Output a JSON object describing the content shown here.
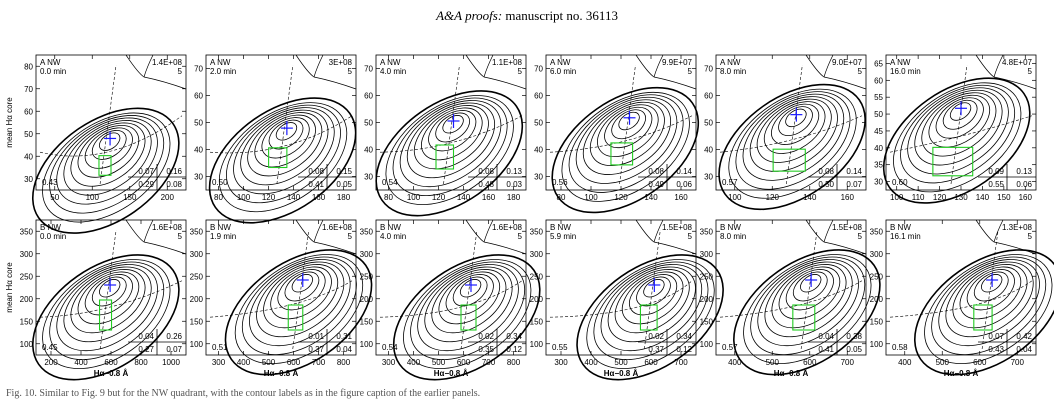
{
  "header": {
    "journal": "A&A proofs:",
    "rest": "manuscript no. 36113"
  },
  "y_axis_label": "mean Hα core",
  "x_axis_label": "Hα−0.8 Å",
  "caption": "Fig. 10. Similar to Fig. 9 but for the NW quadrant, with the contour labels as in the figure caption of the earlier panels.",
  "panel_rows": [
    {
      "row": "A",
      "xlim": [
        50,
        210
      ],
      "panels": [
        {
          "label": "A  NW",
          "time": "0.0 min",
          "count": "1.4E+08",
          "level": "5",
          "corner": "0.43",
          "table": [
            "0.07",
            "0.16",
            "0.29",
            "0.08"
          ],
          "xticks": [
            "50",
            "100",
            "150",
            "200"
          ],
          "yticks": [
            "30",
            "40",
            "50",
            "60",
            "70",
            "80"
          ],
          "ylim": [
            27,
            82
          ],
          "xrange": [
            50,
            212
          ],
          "cross": [
            130,
            48
          ],
          "box": [
            118,
            131,
            33,
            41
          ]
        },
        {
          "label": "A  NW",
          "time": "2.0 min",
          "count": "3E+08",
          "level": "5",
          "corner": "0.50",
          "table": [
            "0.08",
            "0.15",
            "0.41",
            "0.05"
          ],
          "xticks": [
            "80",
            "100",
            "120",
            "140",
            "160",
            "180"
          ],
          "yticks": [
            "30",
            "40",
            "50",
            "60",
            "70"
          ],
          "ylim": [
            27,
            75
          ],
          "xrange": [
            70,
            185
          ],
          "cross": [
            132,
            49
          ],
          "box": [
            118,
            132,
            35,
            42
          ]
        },
        {
          "label": "A  NW",
          "time": "4.0 min",
          "count": "1.1E+08",
          "level": "5",
          "corner": "0.54",
          "table": [
            "0.08",
            "0.13",
            "0.48",
            "0.03"
          ],
          "xticks": [
            "80",
            "100",
            "120",
            "140",
            "160",
            "180"
          ],
          "yticks": [
            "30",
            "40",
            "50",
            "60",
            "70"
          ],
          "ylim": [
            27,
            72
          ],
          "xrange": [
            70,
            190
          ],
          "cross": [
            132,
            50
          ],
          "box": [
            118,
            132,
            34,
            42
          ]
        },
        {
          "label": "A  NW",
          "time": "6.0 min",
          "count": "9.9E+07",
          "level": "5",
          "corner": "0.56",
          "table": [
            "0.08",
            "0.14",
            "0.49",
            "0.06"
          ],
          "xticks": [
            "80",
            "100",
            "120",
            "140",
            "160"
          ],
          "yticks": [
            "30",
            "40",
            "50",
            "60",
            "70"
          ],
          "ylim": [
            27,
            70
          ],
          "xrange": [
            78,
            175
          ],
          "cross": [
            132,
            50
          ],
          "box": [
            120,
            134,
            35,
            42
          ]
        },
        {
          "label": "A  NW",
          "time": "8.0 min",
          "count": "9.0E+07",
          "level": "5",
          "corner": "0.57",
          "table": [
            "0.08",
            "0.14",
            "0.50",
            "0.07"
          ],
          "xticks": [
            "100",
            "120",
            "140",
            "160"
          ],
          "yticks": [
            "30",
            "40",
            "50",
            "60",
            "70"
          ],
          "ylim": [
            27,
            70
          ],
          "xrange": [
            88,
            172
          ],
          "cross": [
            133,
            51
          ],
          "box": [
            120,
            138,
            33,
            40
          ]
        },
        {
          "label": "A  NW",
          "time": "16.0 min",
          "count": "4.8E+07",
          "level": "5",
          "corner": "0.60",
          "table": [
            "0.09",
            "0.13",
            "0.55",
            "0.06"
          ],
          "xticks": [
            "100",
            "110",
            "120",
            "130",
            "140",
            "150",
            "160"
          ],
          "yticks": [
            "30",
            "35",
            "40",
            "45",
            "50",
            "55",
            "60",
            "65"
          ],
          "ylim": [
            28,
            66
          ],
          "xrange": [
            100,
            164
          ],
          "cross": [
            132,
            51
          ],
          "box": [
            120,
            137,
            32,
            40
          ]
        }
      ]
    },
    {
      "row": "B",
      "panels": [
        {
          "label": "B  NW",
          "time": "0.0 min",
          "count": "1.6E+08",
          "level": "5",
          "corner": "0.45",
          "table": [
            "0.04",
            "0.26",
            "0.27",
            "0.07"
          ],
          "xticks": [
            "200",
            "400",
            "600",
            "800",
            "1000"
          ],
          "yticks": [
            "100",
            "150",
            "200",
            "250",
            "300",
            "350"
          ],
          "ylim": [
            90,
            360
          ],
          "xrange": [
            200,
            1050
          ],
          "cross": [
            620,
            230
          ],
          "box": [
            560,
            620,
            140,
            200
          ],
          "xlabel": true,
          "ylabel": true
        },
        {
          "label": "B  NW",
          "time": "1.9 min",
          "count": "1.6E+08",
          "level": "5",
          "corner": "0.51",
          "table": [
            "0.01",
            "0.31",
            "0.37",
            "0.04"
          ],
          "xticks": [
            "300",
            "400",
            "500",
            "600",
            "700",
            "800"
          ],
          "yticks": [
            "100",
            "150",
            "200",
            "250",
            "300",
            "350"
          ],
          "ylim": [
            90,
            360
          ],
          "xrange": [
            220,
            840
          ],
          "cross": [
            620,
            240
          ],
          "box": [
            560,
            620,
            140,
            190
          ],
          "xlabel": true
        },
        {
          "label": "B  NW",
          "time": "4.0 min",
          "count": "1.6E+08",
          "level": "5",
          "corner": "0.54",
          "table": [
            "0.02",
            "0.34",
            "0.35",
            "0.12"
          ],
          "xticks": [
            "300",
            "400",
            "500",
            "600",
            "700",
            "800"
          ],
          "yticks": [
            "100",
            "150",
            "200",
            "250",
            "300",
            "350"
          ],
          "ylim": [
            90,
            360
          ],
          "xrange": [
            220,
            820
          ],
          "cross": [
            600,
            230
          ],
          "box": [
            560,
            620,
            140,
            190
          ],
          "xlabel": true
        },
        {
          "label": "B  NW",
          "time": "5.9 min",
          "count": "1.5E+08",
          "level": "5",
          "corner": "0.55",
          "table": [
            "0.02",
            "0.34",
            "0.37",
            "0.12"
          ],
          "xticks": [
            "300",
            "400",
            "500",
            "600",
            "700"
          ],
          "yticks": [
            "100",
            "150",
            "200",
            "250",
            "300",
            "350"
          ],
          "ylim": [
            90,
            360
          ],
          "xrange": [
            220,
            760
          ],
          "cross": [
            610,
            230
          ],
          "box": [
            560,
            620,
            140,
            190
          ],
          "xlabel": true
        },
        {
          "label": "B  NW",
          "time": "8.0 min",
          "count": "1.5E+08",
          "level": "5",
          "corner": "0.57",
          "table": [
            "0.04",
            "0.38",
            "0.41",
            "0.05"
          ],
          "xticks": [
            "400",
            "500",
            "600",
            "700"
          ],
          "yticks": [
            "100",
            "150",
            "200",
            "250",
            "300",
            "350"
          ],
          "ylim": [
            90,
            360
          ],
          "xrange": [
            350,
            760
          ],
          "cross": [
            610,
            240
          ],
          "box": [
            560,
            620,
            140,
            190
          ],
          "xlabel": true
        },
        {
          "label": "B  NW",
          "time": "16.1 min",
          "count": "1.3E+08",
          "level": "5",
          "corner": "0.58",
          "table": [
            "0.07",
            "0.42",
            "0.43",
            "0.04"
          ],
          "xticks": [
            "400",
            "500",
            "600",
            "700"
          ],
          "yticks": [
            "100",
            "150",
            "200",
            "250",
            "300",
            "350"
          ],
          "ylim": [
            90,
            360
          ],
          "xrange": [
            330,
            740
          ],
          "cross": [
            620,
            240
          ],
          "box": [
            570,
            620,
            140,
            190
          ],
          "xlabel": true
        }
      ]
    }
  ]
}
